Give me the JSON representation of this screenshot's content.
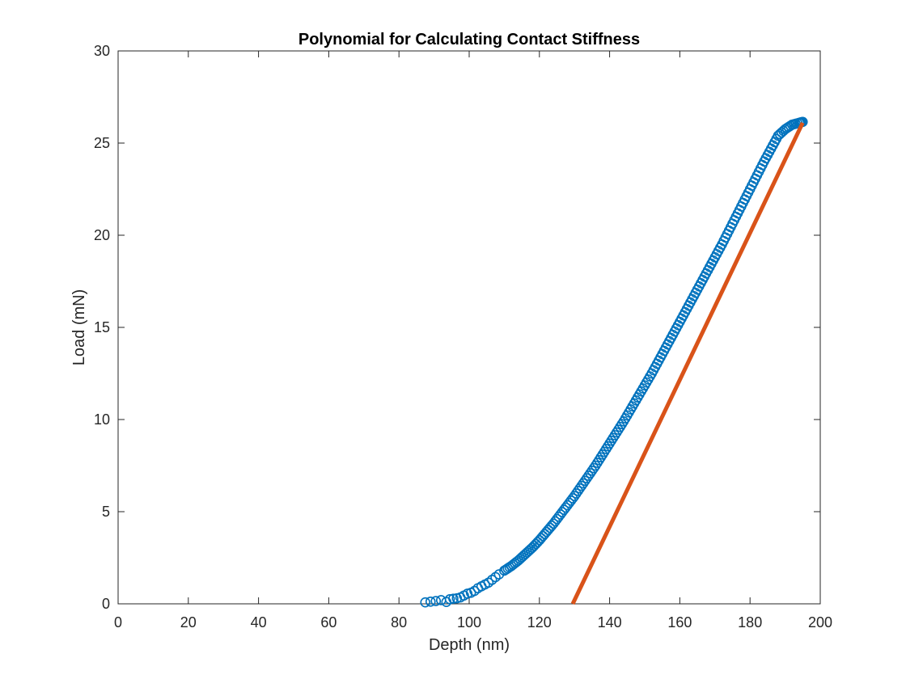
{
  "chart_data": {
    "type": "scatter",
    "title": "Polynomial for Calculating Contact Stiffness",
    "xlabel": "Depth (nm)",
    "ylabel": "Load (mN)",
    "xlim": [
      0,
      200
    ],
    "ylim": [
      0,
      30
    ],
    "xticks": [
      0,
      20,
      40,
      60,
      80,
      100,
      120,
      140,
      160,
      180,
      200
    ],
    "yticks": [
      0,
      5,
      10,
      15,
      20,
      25,
      30
    ],
    "grid": false,
    "legend": "none",
    "series": [
      {
        "kind": "scatter-markers",
        "marker": "circle-open",
        "color": "#0072BD",
        "x": [
          87.5,
          89.0,
          90.5,
          92.0,
          93.5,
          94.5,
          95.5,
          96.5,
          97.5,
          98.5,
          99.5,
          100.5,
          101.5,
          102.5,
          103.5,
          104.5,
          105.5,
          106.5,
          107.5,
          108.5,
          110.0,
          112.0,
          114.0,
          116.0,
          118.0,
          120.0,
          122.0,
          124.0,
          126.0,
          128.0,
          130.0,
          132.0,
          134.0,
          136.0,
          138.0,
          140.0,
          142.0,
          144.0,
          146.0,
          148.0,
          150.0,
          152.0,
          154.0,
          156.0,
          158.0,
          160.0,
          162.0,
          164.0,
          166.0,
          168.0,
          170.0,
          172.0,
          174.0,
          176.0,
          178.0,
          180.0,
          182.0,
          184.0,
          186.0,
          188.0,
          190.0,
          192.0,
          194.0,
          195.0
        ],
        "y": [
          0.08,
          0.12,
          0.15,
          0.2,
          0.1,
          0.25,
          0.28,
          0.3,
          0.35,
          0.45,
          0.55,
          0.6,
          0.7,
          0.85,
          0.95,
          1.05,
          1.15,
          1.3,
          1.45,
          1.6,
          1.8,
          2.05,
          2.35,
          2.7,
          3.05,
          3.45,
          3.9,
          4.35,
          4.85,
          5.35,
          5.85,
          6.4,
          6.95,
          7.5,
          8.1,
          8.7,
          9.3,
          9.9,
          10.55,
          11.2,
          11.85,
          12.5,
          13.2,
          13.9,
          14.6,
          15.3,
          16.0,
          16.7,
          17.4,
          18.1,
          18.8,
          19.5,
          20.25,
          21.0,
          21.75,
          22.5,
          23.25,
          24.0,
          24.7,
          25.4,
          25.75,
          26.0,
          26.1,
          26.15
        ]
      },
      {
        "kind": "line",
        "color": "#D95319",
        "x": [
          129.5,
          195.0
        ],
        "y": [
          0.0,
          26.1
        ]
      }
    ]
  }
}
